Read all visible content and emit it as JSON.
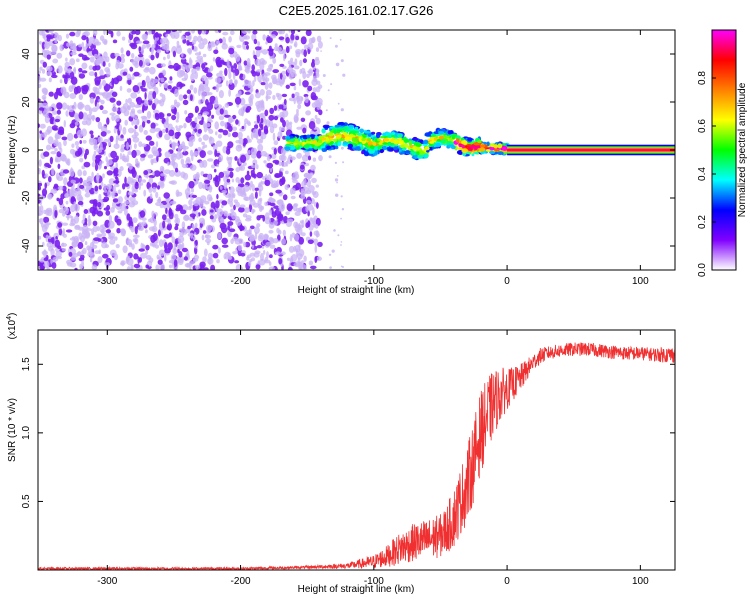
{
  "title": "C2E5.2025.161.02.17.G26",
  "colors": {
    "snr_line": "#f03030",
    "scatter": "#7a1ff0",
    "scatter_light": "#c9b3f5"
  },
  "chart_data": [
    {
      "type": "heatmap",
      "xlabel": "Height of straight line (km)",
      "ylabel": "Frequency (Hz)",
      "xlim": [
        -352,
        126
      ],
      "ylim": [
        -50,
        50
      ],
      "x_ticks": [
        -300,
        -200,
        -100,
        0,
        100
      ],
      "y_ticks": [
        -40,
        -20,
        0,
        20,
        40
      ],
      "colorbar": {
        "label": "Normalized spectral amplitude",
        "range": [
          0,
          1
        ],
        "ticks": [
          "0.0",
          "0.2",
          "0.4",
          "0.6",
          "0.8"
        ],
        "tick_values": [
          0,
          0.2,
          0.4,
          0.6,
          0.8
        ],
        "colormap": [
          "#ffffff",
          "#8000ff",
          "#0000ff",
          "#00ffff",
          "#00ff00",
          "#ffff00",
          "#ff8000",
          "#ff0000",
          "#ff00ff"
        ]
      },
      "regions": [
        {
          "x": [
            -352,
            -140
          ],
          "y": [
            -50,
            50
          ],
          "amplitude": "low (0.0-0.2), noise"
        },
        {
          "x": [
            -165,
            0
          ],
          "y": [
            -8,
            15
          ],
          "amplitude": "0.2-0.9, oscillating band"
        },
        {
          "x": [
            0,
            126
          ],
          "y": [
            -1,
            1
          ],
          "amplitude": "0.9-1.0, constant line at 0 Hz"
        }
      ]
    },
    {
      "type": "line",
      "xlabel": "Height of straight line (km)",
      "ylabel": "SNR (10 * v/v)",
      "y_multiplier": "(x10^4)",
      "xlim": [
        -352,
        126
      ],
      "ylim": [
        0,
        1.75
      ],
      "x_ticks": [
        -300,
        -200,
        -100,
        0,
        100
      ],
      "y_ticks": [
        0.5,
        1.0,
        1.5
      ],
      "y_tick_labels": [
        "0.5",
        "1.0",
        "1.5"
      ],
      "series": [
        {
          "x": [
            -352,
            -300,
            -250,
            -200,
            -150,
            -120,
            -100,
            -90,
            -80,
            -70,
            -60,
            -50,
            -45,
            -40,
            -35,
            -30,
            -25,
            -20,
            -15,
            -10,
            -5,
            0,
            5,
            10,
            15,
            20,
            25,
            30,
            40,
            50,
            60,
            70,
            80,
            90,
            100,
            110,
            120,
            126
          ],
          "values": [
            0.01,
            0.01,
            0.01,
            0.01,
            0.02,
            0.03,
            0.06,
            0.1,
            0.16,
            0.2,
            0.22,
            0.25,
            0.3,
            0.38,
            0.5,
            0.62,
            0.8,
            1.0,
            1.12,
            1.22,
            1.28,
            1.32,
            1.36,
            1.4,
            1.46,
            1.52,
            1.56,
            1.58,
            1.6,
            1.61,
            1.61,
            1.6,
            1.59,
            1.58,
            1.58,
            1.57,
            1.57,
            1.57
          ],
          "noise_envelope": [
            0.01,
            0.01,
            0.01,
            0.01,
            0.01,
            0.02,
            0.05,
            0.08,
            0.12,
            0.14,
            0.15,
            0.16,
            0.18,
            0.22,
            0.25,
            0.28,
            0.3,
            0.3,
            0.28,
            0.24,
            0.2,
            0.15,
            0.12,
            0.1,
            0.08,
            0.06,
            0.06,
            0.05,
            0.05,
            0.05,
            0.05,
            0.05,
            0.05,
            0.05,
            0.05,
            0.05,
            0.06,
            0.06
          ]
        }
      ]
    }
  ]
}
